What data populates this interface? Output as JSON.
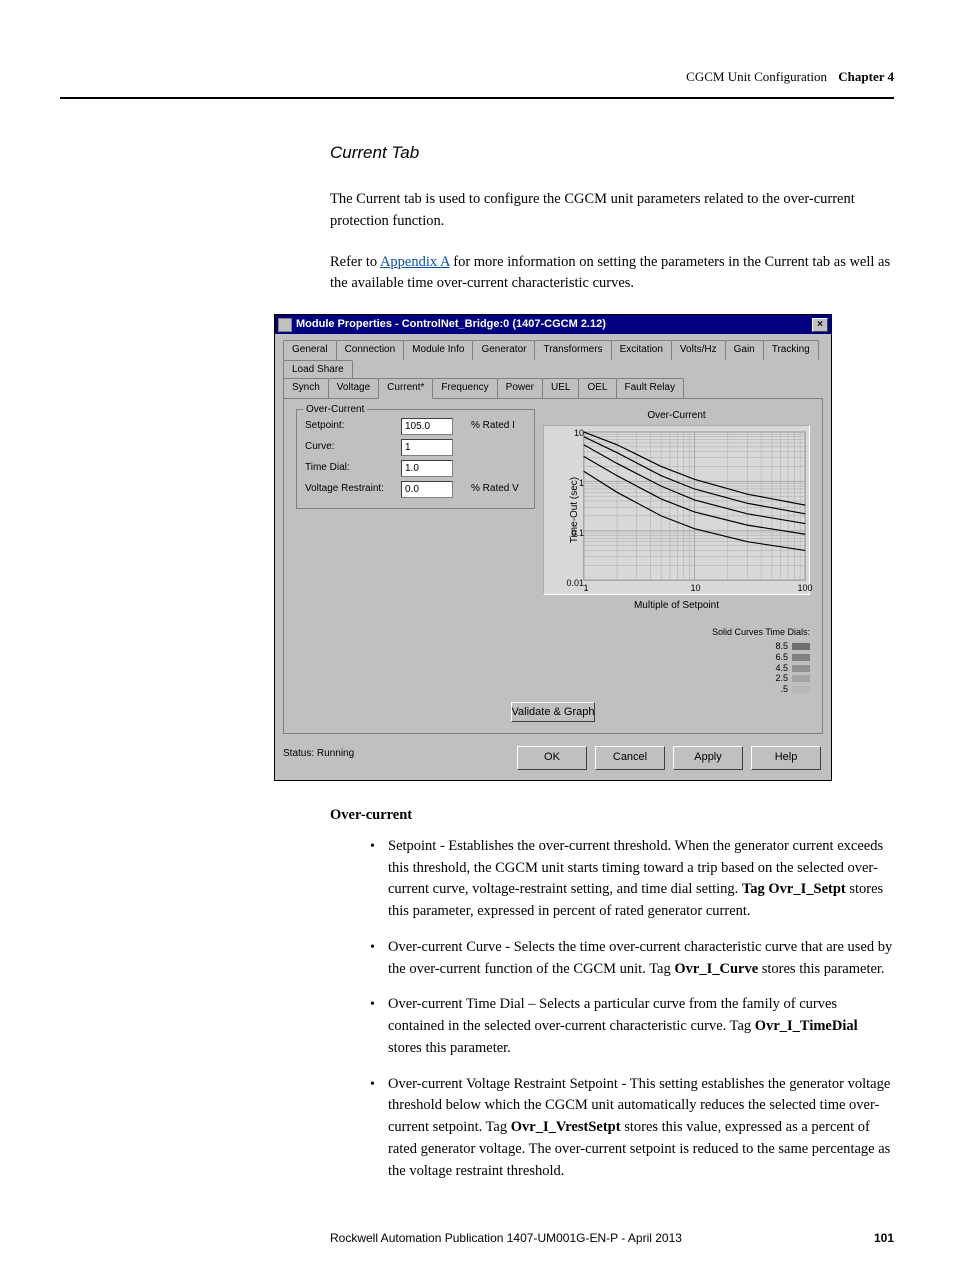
{
  "header": {
    "breadcrumb": "CGCM Unit Configuration",
    "chapter": "Chapter 4"
  },
  "section_title": "Current Tab",
  "para1": "The Current tab is used to configure the CGCM unit parameters related to the over-current protection function.",
  "para2_pre": "Refer to ",
  "para2_link": "Appendix A",
  "para2_post": " for more information on setting the parameters in the Current tab as well as the available time over-current characteristic curves.",
  "dialog": {
    "title": "Module Properties - ControlNet_Bridge:0 (1407-CGCM 2.12)",
    "tabs_row1": [
      "General",
      "Connection",
      "Module Info",
      "Generator",
      "Transformers",
      "Excitation",
      "Volts/Hz",
      "Gain",
      "Tracking",
      "Load Share"
    ],
    "tabs_row2": [
      "Synch",
      "Voltage",
      "Current*",
      "Frequency",
      "Power",
      "UEL",
      "OEL",
      "Fault Relay"
    ],
    "active_tab": "Current*",
    "group_label": "Over-Current",
    "fields": {
      "setpoint": {
        "label": "Setpoint:",
        "value": "105.0",
        "unit": "% Rated I"
      },
      "curve": {
        "label": "Curve:",
        "value": "1",
        "unit": ""
      },
      "timedial": {
        "label": "Time Dial:",
        "value": "1.0",
        "unit": ""
      },
      "vrestr": {
        "label": "Voltage Restraint:",
        "value": "0.0",
        "unit": "% Rated V"
      }
    },
    "chart": {
      "title": "Over-Current",
      "ylabel": "Time-Out (sec)",
      "xlabel": "Multiple of Setpoint",
      "xscale": "log",
      "yscale": "log",
      "xlim": [
        1,
        100
      ],
      "ylim": [
        0.01,
        10
      ],
      "yticks": [
        "10",
        "1",
        "0.1",
        "0.01"
      ],
      "xticks": [
        "1",
        "10",
        "100"
      ],
      "background": "#d8d8d8",
      "grid_color": "#a8a8a8",
      "curve_color": "#000000",
      "curves": [
        [
          [
            1,
            10
          ],
          [
            2,
            5.5
          ],
          [
            5,
            2.0
          ],
          [
            10,
            1.1
          ],
          [
            30,
            0.55
          ],
          [
            100,
            0.33
          ]
        ],
        [
          [
            1,
            8
          ],
          [
            2,
            3.8
          ],
          [
            5,
            1.3
          ],
          [
            10,
            0.7
          ],
          [
            30,
            0.36
          ],
          [
            100,
            0.22
          ]
        ],
        [
          [
            1,
            5.5
          ],
          [
            2,
            2.3
          ],
          [
            5,
            0.8
          ],
          [
            10,
            0.42
          ],
          [
            30,
            0.22
          ],
          [
            100,
            0.14
          ]
        ],
        [
          [
            1,
            3.2
          ],
          [
            2,
            1.3
          ],
          [
            5,
            0.44
          ],
          [
            10,
            0.24
          ],
          [
            30,
            0.13
          ],
          [
            100,
            0.085
          ]
        ],
        [
          [
            1,
            1.6
          ],
          [
            2,
            0.6
          ],
          [
            5,
            0.2
          ],
          [
            10,
            0.11
          ],
          [
            30,
            0.06
          ],
          [
            100,
            0.04
          ]
        ]
      ],
      "legend_title": "Solid Curves Time Dials:",
      "legend": [
        {
          "label": "8.5",
          "color": "#707070"
        },
        {
          "label": "6.5",
          "color": "#808080"
        },
        {
          "label": "4.5",
          "color": "#909090"
        },
        {
          "label": "2.5",
          "color": "#a4a4a4"
        },
        {
          "label": ".5",
          "color": "#b8b8b8"
        }
      ]
    },
    "validate_button": "Validate & Graph",
    "status_label": "Status:",
    "status_value": "Running",
    "buttons": {
      "ok": "OK",
      "cancel": "Cancel",
      "apply": "Apply",
      "help": "Help"
    }
  },
  "subhead": "Over-current",
  "bullets": [
    {
      "pre": "Setpoint - Establishes the over-current threshold. When the generator current exceeds this threshold, the CGCM unit starts timing toward a trip based on the selected over-current curve, voltage-restraint setting, and time dial setting. ",
      "bold": "Tag Ovr_I_Setpt",
      "post": " stores this parameter, expressed in percent of rated generator current."
    },
    {
      "pre": "Over-current Curve - Selects the time over-current characteristic curve that are used by the over-current function of the CGCM unit. Tag ",
      "bold": "Ovr_I_Curve",
      "post": " stores this parameter."
    },
    {
      "pre": "Over-current Time Dial – Selects a particular curve from the family of curves contained in the selected over-current characteristic curve. Tag ",
      "bold": "Ovr_I_TimeDial",
      "post": " stores this parameter."
    },
    {
      "pre": "Over-current Voltage Restraint Setpoint - This setting establishes the generator voltage threshold below which the CGCM unit automatically reduces the selected time over-current setpoint. Tag ",
      "bold": "Ovr_I_VrestSetpt",
      "post": " stores this value, expressed as a percent of rated generator voltage. The over-current setpoint is reduced to the same percentage as the voltage restraint threshold."
    }
  ],
  "footer": {
    "pub": "Rockwell Automation Publication 1407-UM001G-EN-P - April 2013",
    "page": "101"
  }
}
